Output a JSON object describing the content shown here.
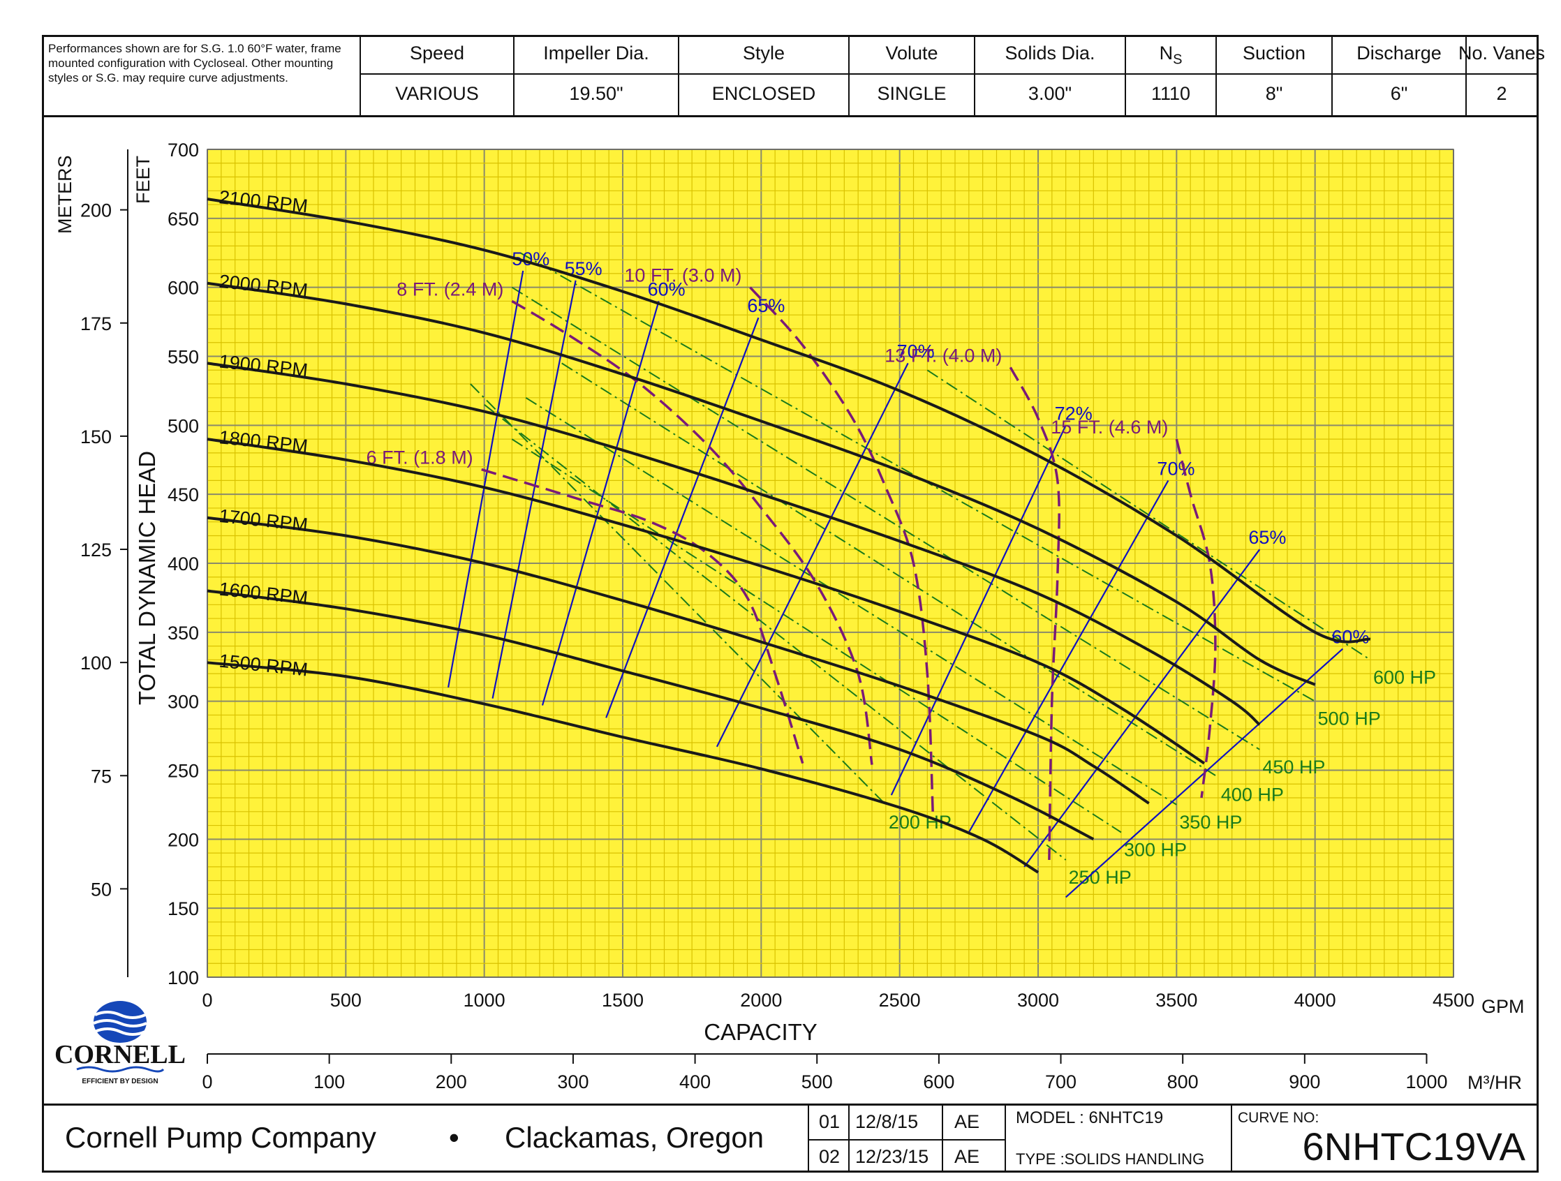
{
  "header": {
    "note": "Performances shown are for S.G. 1.0 60°F water, frame mounted configuration with Cycloseal. Other mounting styles or S.G. may require curve adjustments.",
    "columns": [
      {
        "label": "Speed",
        "value": "VARIOUS"
      },
      {
        "label": "Impeller Dia.",
        "value": "19.50\""
      },
      {
        "label": "Style",
        "value": "ENCLOSED"
      },
      {
        "label": "Volute",
        "value": "SINGLE"
      },
      {
        "label": "Solids Dia.",
        "value": "3.00\""
      },
      {
        "label": "NS",
        "value": "1110"
      },
      {
        "label": "Suction",
        "value": "8\""
      },
      {
        "label": "Discharge",
        "value": "6\""
      },
      {
        "label": "No. Vanes",
        "value": "2"
      }
    ]
  },
  "footer": {
    "company": "Cornell Pump Company",
    "bullet": "•",
    "location": "Clackamas, Oregon",
    "revisions": [
      {
        "no": "01",
        "date": "12/8/15",
        "by": "AE"
      },
      {
        "no": "02",
        "date": "12/23/15",
        "by": "AE"
      }
    ],
    "model": "MODEL :  6NHTC19",
    "type": "TYPE :SOLIDS HANDLING",
    "curve_no_label": "CURVE NO:",
    "curve_no": "6NHTC19VA"
  },
  "logo": {
    "name": "CORNELL",
    "tagline": "EFFICIENT BY DESIGN"
  },
  "colors": {
    "grid_bg": "#fff23a",
    "grid_minor": "#d9c200",
    "grid_major": "#8a8a6a",
    "curve": "#1a1a1a",
    "efficiency": "#1010c0",
    "npsh": "#7a1a78",
    "hp": "#1a7a1a"
  },
  "chart_data": {
    "type": "line",
    "xlabel": "CAPACITY",
    "ylabel": "TOTAL DYNAMIC HEAD",
    "x_unit": "GPM",
    "x2_unit": "M³/HR",
    "y_unit": "FEET",
    "y2_unit": "METERS",
    "xlim": [
      0,
      4500
    ],
    "ylim": [
      100,
      700
    ],
    "x_ticks": [
      0,
      500,
      1000,
      1500,
      2000,
      2500,
      3000,
      3500,
      4000,
      4500
    ],
    "x2_ticks": [
      0,
      100,
      200,
      300,
      400,
      500,
      600,
      700,
      800,
      900,
      1000
    ],
    "y_ticks": [
      100,
      150,
      200,
      250,
      300,
      350,
      400,
      450,
      500,
      550,
      600,
      650,
      700
    ],
    "y2_ticks": [
      50,
      75,
      100,
      125,
      150,
      175,
      200
    ],
    "grid": true,
    "series": [
      {
        "name": "2100 RPM",
        "x": [
          0,
          500,
          1000,
          1500,
          2000,
          2500,
          3000,
          3500,
          4000,
          4200
        ],
        "y": [
          664,
          648,
          627,
          597,
          562,
          525,
          478,
          420,
          350,
          345
        ]
      },
      {
        "name": "2000 RPM",
        "x": [
          0,
          500,
          1000,
          1500,
          2000,
          2500,
          3000,
          3500,
          3800,
          4000
        ],
        "y": [
          603,
          588,
          567,
          537,
          503,
          467,
          425,
          372,
          330,
          312
        ]
      },
      {
        "name": "1900 RPM",
        "x": [
          0,
          500,
          1000,
          1500,
          2000,
          2500,
          3000,
          3400,
          3700,
          3800
        ],
        "y": [
          545,
          530,
          510,
          482,
          450,
          416,
          378,
          337,
          300,
          283
        ]
      },
      {
        "name": "1800 RPM",
        "x": [
          0,
          500,
          1000,
          1500,
          2000,
          2500,
          3000,
          3300,
          3600
        ],
        "y": [
          490,
          475,
          455,
          428,
          398,
          365,
          328,
          295,
          255
        ]
      },
      {
        "name": "1700 RPM",
        "x": [
          0,
          500,
          1000,
          1500,
          2000,
          2500,
          3000,
          3200,
          3400
        ],
        "y": [
          433,
          420,
          400,
          373,
          343,
          311,
          275,
          253,
          226
        ]
      },
      {
        "name": "1600 RPM",
        "x": [
          0,
          500,
          1000,
          1500,
          2000,
          2500,
          2900,
          3200
        ],
        "y": [
          380,
          367,
          348,
          322,
          295,
          265,
          231,
          200
        ]
      },
      {
        "name": "1500 RPM",
        "x": [
          0,
          500,
          1000,
          1500,
          2000,
          2500,
          2800,
          3000
        ],
        "y": [
          328,
          318,
          298,
          274,
          251,
          223,
          200,
          176
        ]
      }
    ],
    "efficiency_lines": [
      {
        "label": "50%",
        "x": [
          870,
          1140
        ],
        "y": [
          310,
          612
        ]
      },
      {
        "label": "55%",
        "x": [
          1030,
          1330
        ],
        "y": [
          302,
          605
        ]
      },
      {
        "label": "60%",
        "x": [
          1210,
          1630
        ],
        "y": [
          297,
          590
        ]
      },
      {
        "label": "65%",
        "x": [
          1440,
          1990
        ],
        "y": [
          288,
          578
        ]
      },
      {
        "label": "70%",
        "x": [
          1840,
          2530
        ],
        "y": [
          267,
          545
        ]
      },
      {
        "label": "72%",
        "x": [
          2470,
          3100
        ],
        "y": [
          232,
          500
        ]
      },
      {
        "label": "70%",
        "x": [
          2750,
          3470
        ],
        "y": [
          205,
          460
        ]
      },
      {
        "label": "65%",
        "x": [
          2950,
          3800
        ],
        "y": [
          180,
          410
        ]
      },
      {
        "label": "60%",
        "x": [
          3100,
          4100
        ],
        "y": [
          158,
          338
        ]
      }
    ],
    "npsh_lines": [
      {
        "label": "6 FT. (1.8 M)",
        "x": [
          990,
          1350,
          1600,
          1800,
          1950,
          2050,
          2150
        ],
        "y": [
          468,
          446,
          430,
          408,
          375,
          320,
          255
        ]
      },
      {
        "label": "8 FT. (2.4 M)",
        "x": [
          1100,
          1300,
          1550,
          1800,
          2000,
          2200,
          2350,
          2400
        ],
        "y": [
          590,
          566,
          532,
          487,
          440,
          385,
          320,
          254
        ]
      },
      {
        "label": "10 FT. (3.0 M)",
        "x": [
          1960,
          2150,
          2330,
          2450,
          2550,
          2600,
          2620
        ],
        "y": [
          600,
          558,
          505,
          455,
          400,
          320,
          218
        ]
      },
      {
        "label": "13 FT. (4.0 M)",
        "x": [
          2900,
          3000,
          3070,
          3070,
          3050,
          3040
        ],
        "y": [
          542,
          505,
          460,
          390,
          300,
          185
        ]
      },
      {
        "label": "15 FT. (4.6 M)",
        "x": [
          3500,
          3550,
          3620,
          3640,
          3620,
          3590
        ],
        "y": [
          490,
          450,
          400,
          340,
          280,
          230
        ]
      }
    ],
    "hp_lines": [
      {
        "label": "200 HP",
        "x": [
          950,
          2450
        ],
        "y": [
          530,
          225
        ]
      },
      {
        "label": "250 HP",
        "x": [
          1000,
          3100
        ],
        "y": [
          515,
          185
        ]
      },
      {
        "label": "300 HP",
        "x": [
          1100,
          3300
        ],
        "y": [
          490,
          205
        ]
      },
      {
        "label": "350 HP",
        "x": [
          1150,
          3500
        ],
        "y": [
          520,
          225
        ]
      },
      {
        "label": "400 HP",
        "x": [
          1280,
          3650
        ],
        "y": [
          545,
          245
        ]
      },
      {
        "label": "450 HP",
        "x": [
          1100,
          3800
        ],
        "y": [
          600,
          265
        ]
      },
      {
        "label": "500 HP",
        "x": [
          1130,
          4000
        ],
        "y": [
          625,
          300
        ]
      },
      {
        "label": "600 HP",
        "x": [
          2600,
          4200
        ],
        "y": [
          540,
          330
        ]
      }
    ]
  }
}
